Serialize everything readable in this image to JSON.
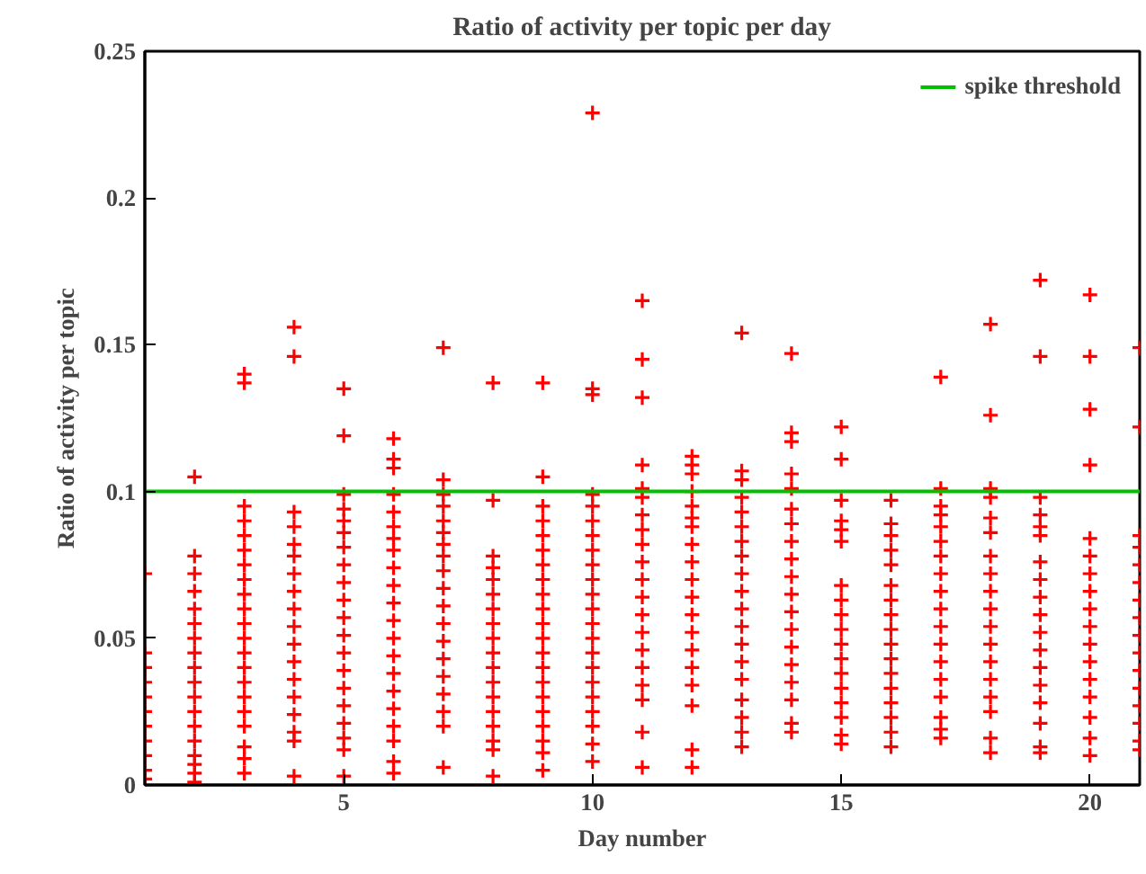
{
  "chart_data": {
    "type": "scatter",
    "title": "Ratio of activity per topic per day",
    "xlabel": "Day number",
    "ylabel": "Ratio of activity per topic",
    "xlim": [
      1,
      21
    ],
    "ylim": [
      0,
      0.25
    ],
    "xticks": [
      5,
      10,
      15,
      20
    ],
    "yticks": [
      0,
      0.05,
      0.1,
      0.15,
      0.2,
      0.25
    ],
    "grid": false,
    "legend": "top right",
    "marker": "cross",
    "ref_lines": [
      {
        "axis": "y",
        "value": 0.1,
        "label": "spike threshold",
        "color": "#00c000"
      }
    ],
    "series": [
      {
        "color": "#ff0000",
        "x": [
          1,
          1,
          1,
          1,
          1,
          1,
          1,
          1,
          1,
          1,
          1
        ],
        "values": [
          0.072,
          0.045,
          0.04,
          0.035,
          0.03,
          0.025,
          0.02,
          0.015,
          0.01,
          0.005,
          0.002
        ]
      },
      {
        "color": "#ff0000",
        "x": [
          2,
          2,
          2,
          2,
          2,
          2,
          2,
          2,
          2,
          2,
          2,
          2,
          2,
          2,
          2,
          2,
          2,
          2
        ],
        "values": [
          0.105,
          0.078,
          0.072,
          0.066,
          0.06,
          0.055,
          0.05,
          0.045,
          0.04,
          0.035,
          0.03,
          0.025,
          0.02,
          0.015,
          0.01,
          0.007,
          0.004,
          0.001
        ]
      },
      {
        "color": "#ff0000",
        "x": [
          3,
          3,
          3,
          3,
          3,
          3,
          3,
          3,
          3,
          3,
          3,
          3,
          3,
          3,
          3,
          3,
          3,
          3,
          3,
          3,
          3
        ],
        "values": [
          0.14,
          0.137,
          0.095,
          0.09,
          0.085,
          0.08,
          0.075,
          0.07,
          0.065,
          0.06,
          0.055,
          0.05,
          0.045,
          0.04,
          0.035,
          0.03,
          0.025,
          0.02,
          0.013,
          0.009,
          0.004
        ]
      },
      {
        "color": "#ff0000",
        "x": [
          4,
          4,
          4,
          4,
          4,
          4,
          4,
          4,
          4,
          4,
          4,
          4,
          4,
          4,
          4,
          4,
          4,
          4
        ],
        "values": [
          0.156,
          0.146,
          0.093,
          0.088,
          0.082,
          0.078,
          0.072,
          0.066,
          0.06,
          0.054,
          0.048,
          0.042,
          0.036,
          0.03,
          0.024,
          0.018,
          0.015,
          0.003
        ]
      },
      {
        "color": "#ff0000",
        "x": [
          5,
          5,
          5,
          5,
          5,
          5,
          5,
          5,
          5,
          5,
          5,
          5,
          5,
          5,
          5,
          5,
          5,
          5,
          5,
          5
        ],
        "values": [
          0.135,
          0.119,
          0.099,
          0.094,
          0.09,
          0.086,
          0.081,
          0.075,
          0.069,
          0.063,
          0.057,
          0.051,
          0.045,
          0.039,
          0.033,
          0.027,
          0.021,
          0.016,
          0.012,
          0.003
        ]
      },
      {
        "color": "#ff0000",
        "x": [
          6,
          6,
          6,
          6,
          6,
          6,
          6,
          6,
          6,
          6,
          6,
          6,
          6,
          6,
          6,
          6,
          6,
          6,
          6,
          6,
          6
        ],
        "values": [
          0.118,
          0.111,
          0.108,
          0.099,
          0.093,
          0.088,
          0.084,
          0.08,
          0.074,
          0.068,
          0.062,
          0.056,
          0.05,
          0.044,
          0.038,
          0.032,
          0.026,
          0.02,
          0.015,
          0.008,
          0.004
        ]
      },
      {
        "color": "#ff0000",
        "x": [
          7,
          7,
          7,
          7,
          7,
          7,
          7,
          7,
          7,
          7,
          7,
          7,
          7,
          7,
          7,
          7,
          7,
          7,
          7
        ],
        "values": [
          0.149,
          0.104,
          0.099,
          0.095,
          0.09,
          0.086,
          0.082,
          0.078,
          0.073,
          0.067,
          0.061,
          0.055,
          0.049,
          0.043,
          0.037,
          0.031,
          0.025,
          0.02,
          0.006
        ]
      },
      {
        "color": "#ff0000",
        "x": [
          8,
          8,
          8,
          8,
          8,
          8,
          8,
          8,
          8,
          8,
          8,
          8,
          8,
          8,
          8,
          8,
          8,
          8
        ],
        "values": [
          0.137,
          0.097,
          0.078,
          0.074,
          0.07,
          0.065,
          0.06,
          0.055,
          0.05,
          0.045,
          0.04,
          0.035,
          0.03,
          0.025,
          0.02,
          0.015,
          0.012,
          0.003
        ]
      },
      {
        "color": "#ff0000",
        "x": [
          9,
          9,
          9,
          9,
          9,
          9,
          9,
          9,
          9,
          9,
          9,
          9,
          9,
          9,
          9,
          9,
          9,
          9,
          9,
          9,
          9
        ],
        "values": [
          0.137,
          0.105,
          0.095,
          0.09,
          0.085,
          0.08,
          0.075,
          0.07,
          0.065,
          0.06,
          0.055,
          0.05,
          0.045,
          0.04,
          0.035,
          0.03,
          0.025,
          0.02,
          0.015,
          0.011,
          0.005
        ]
      },
      {
        "color": "#ff0000",
        "x": [
          10,
          10,
          10,
          10,
          10,
          10,
          10,
          10,
          10,
          10,
          10,
          10,
          10,
          10,
          10,
          10,
          10,
          10,
          10,
          10,
          10,
          10
        ],
        "values": [
          0.229,
          0.135,
          0.133,
          0.099,
          0.095,
          0.09,
          0.085,
          0.08,
          0.075,
          0.07,
          0.065,
          0.06,
          0.055,
          0.05,
          0.045,
          0.04,
          0.035,
          0.03,
          0.025,
          0.02,
          0.014,
          0.008
        ]
      },
      {
        "color": "#ff0000",
        "x": [
          11,
          11,
          11,
          11,
          11,
          11,
          11,
          11,
          11,
          11,
          11,
          11,
          11,
          11,
          11,
          11,
          11,
          11,
          11,
          11
        ],
        "values": [
          0.165,
          0.145,
          0.132,
          0.109,
          0.101,
          0.098,
          0.092,
          0.087,
          0.082,
          0.076,
          0.07,
          0.064,
          0.058,
          0.052,
          0.046,
          0.04,
          0.034,
          0.029,
          0.018,
          0.006
        ]
      },
      {
        "color": "#ff0000",
        "x": [
          12,
          12,
          12,
          12,
          12,
          12,
          12,
          12,
          12,
          12,
          12,
          12,
          12,
          12,
          12,
          12,
          12,
          12,
          12
        ],
        "values": [
          0.112,
          0.109,
          0.106,
          0.1,
          0.095,
          0.091,
          0.088,
          0.082,
          0.076,
          0.07,
          0.064,
          0.058,
          0.052,
          0.046,
          0.04,
          0.034,
          0.027,
          0.012,
          0.006
        ]
      },
      {
        "color": "#ff0000",
        "x": [
          13,
          13,
          13,
          13,
          13,
          13,
          13,
          13,
          13,
          13,
          13,
          13,
          13,
          13,
          13,
          13,
          13,
          13,
          13
        ],
        "values": [
          0.154,
          0.107,
          0.104,
          0.098,
          0.093,
          0.088,
          0.083,
          0.078,
          0.072,
          0.066,
          0.06,
          0.054,
          0.048,
          0.042,
          0.036,
          0.029,
          0.023,
          0.018,
          0.013
        ]
      },
      {
        "color": "#ff0000",
        "x": [
          14,
          14,
          14,
          14,
          14,
          14,
          14,
          14,
          14,
          14,
          14,
          14,
          14,
          14,
          14,
          14,
          14,
          14,
          14
        ],
        "values": [
          0.147,
          0.12,
          0.117,
          0.106,
          0.101,
          0.094,
          0.089,
          0.083,
          0.077,
          0.071,
          0.065,
          0.059,
          0.053,
          0.047,
          0.041,
          0.035,
          0.029,
          0.021,
          0.018
        ]
      },
      {
        "color": "#ff0000",
        "x": [
          15,
          15,
          15,
          15,
          15,
          15,
          15,
          15,
          15,
          15,
          15,
          15,
          15,
          15,
          15,
          15,
          15,
          15
        ],
        "values": [
          0.122,
          0.111,
          0.097,
          0.09,
          0.087,
          0.083,
          0.068,
          0.063,
          0.058,
          0.053,
          0.048,
          0.043,
          0.038,
          0.033,
          0.028,
          0.023,
          0.017,
          0.014
        ]
      },
      {
        "color": "#ff0000",
        "x": [
          16,
          16,
          16,
          16,
          16,
          16,
          16,
          16,
          16,
          16,
          16,
          16,
          16,
          16,
          16,
          16,
          16
        ],
        "values": [
          0.097,
          0.089,
          0.085,
          0.08,
          0.075,
          0.068,
          0.063,
          0.058,
          0.053,
          0.048,
          0.043,
          0.038,
          0.033,
          0.028,
          0.023,
          0.018,
          0.013
        ]
      },
      {
        "color": "#ff0000",
        "x": [
          17,
          17,
          17,
          17,
          17,
          17,
          17,
          17,
          17,
          17,
          17,
          17,
          17,
          17,
          17,
          17,
          17,
          17
        ],
        "values": [
          0.139,
          0.101,
          0.095,
          0.092,
          0.088,
          0.083,
          0.078,
          0.072,
          0.066,
          0.06,
          0.054,
          0.048,
          0.042,
          0.036,
          0.03,
          0.023,
          0.019,
          0.016
        ]
      },
      {
        "color": "#ff0000",
        "x": [
          18,
          18,
          18,
          18,
          18,
          18,
          18,
          18,
          18,
          18,
          18,
          18,
          18,
          18,
          18,
          18,
          18,
          18
        ],
        "values": [
          0.157,
          0.126,
          0.101,
          0.098,
          0.091,
          0.086,
          0.078,
          0.072,
          0.066,
          0.06,
          0.054,
          0.048,
          0.042,
          0.036,
          0.03,
          0.025,
          0.016,
          0.011
        ]
      },
      {
        "color": "#ff0000",
        "x": [
          19,
          19,
          19,
          19,
          19,
          19,
          19,
          19,
          19,
          19,
          19,
          19,
          19,
          19,
          19,
          19,
          19,
          19
        ],
        "values": [
          0.172,
          0.146,
          0.098,
          0.092,
          0.088,
          0.085,
          0.076,
          0.07,
          0.064,
          0.058,
          0.052,
          0.046,
          0.04,
          0.034,
          0.028,
          0.021,
          0.013,
          0.011
        ]
      },
      {
        "color": "#ff0000",
        "x": [
          20,
          20,
          20,
          20,
          20,
          20,
          20,
          20,
          20,
          20,
          20,
          20,
          20,
          20,
          20,
          20,
          20
        ],
        "values": [
          0.167,
          0.146,
          0.128,
          0.109,
          0.084,
          0.078,
          0.072,
          0.066,
          0.06,
          0.054,
          0.048,
          0.042,
          0.036,
          0.03,
          0.023,
          0.016,
          0.01
        ]
      },
      {
        "color": "#ff0000",
        "x": [
          21,
          21,
          21,
          21,
          21,
          21,
          21,
          21,
          21,
          21,
          21,
          21,
          21,
          21,
          21,
          21
        ],
        "values": [
          0.149,
          0.122,
          0.085,
          0.081,
          0.075,
          0.069,
          0.063,
          0.057,
          0.051,
          0.045,
          0.039,
          0.033,
          0.027,
          0.021,
          0.015,
          0.012
        ]
      }
    ]
  }
}
